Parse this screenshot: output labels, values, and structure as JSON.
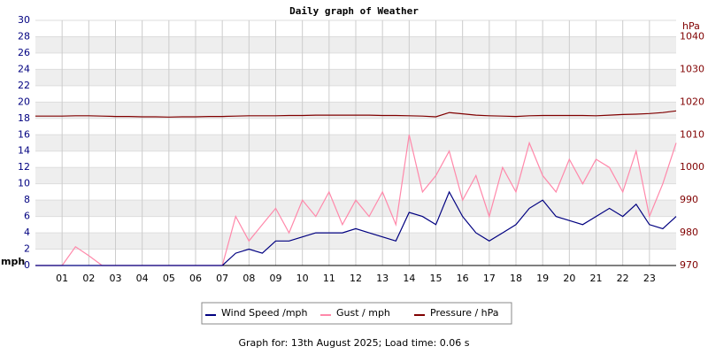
{
  "chart_data": {
    "type": "line",
    "title": "Daily graph of Weather",
    "ylabel": "mph",
    "y2label": "hPa",
    "footer": "Graph for: 13th August 2025; Load time: 0.06 s",
    "x": [
      0,
      0.5,
      1,
      1.5,
      2,
      2.5,
      3,
      3.5,
      4,
      4.5,
      5,
      5.5,
      6,
      6.5,
      7,
      7.5,
      8,
      8.5,
      9,
      9.5,
      10,
      10.5,
      11,
      11.5,
      12,
      12.5,
      13,
      13.5,
      14,
      14.5,
      15,
      15.5,
      16,
      16.5,
      17,
      17.5,
      18,
      18.5,
      19,
      19.5,
      20,
      20.5,
      21,
      21.5,
      22,
      22.5,
      23,
      23.5,
      24
    ],
    "xlim": [
      0,
      24
    ],
    "xticks": [
      {
        "value": 1,
        "label": "01"
      },
      {
        "value": 2,
        "label": "02"
      },
      {
        "value": 3,
        "label": "03"
      },
      {
        "value": 4,
        "label": "04"
      },
      {
        "value": 5,
        "label": "05"
      },
      {
        "value": 6,
        "label": "06"
      },
      {
        "value": 7,
        "label": "07"
      },
      {
        "value": 8,
        "label": "08"
      },
      {
        "value": 9,
        "label": "09"
      },
      10,
      11,
      12,
      13,
      14,
      15,
      16,
      17,
      18,
      19,
      20,
      21,
      22,
      23
    ],
    "ylim": [
      0,
      30
    ],
    "yticks": [
      0,
      2,
      4,
      6,
      8,
      10,
      12,
      14,
      16,
      18,
      20,
      22,
      24,
      26,
      28,
      30
    ],
    "y2lim": [
      970,
      1045
    ],
    "y2ticks": [
      970,
      980,
      990,
      1000,
      1010,
      1020,
      1030,
      1040
    ],
    "grid": true,
    "series": [
      {
        "name": "Wind Speed /mph",
        "color": "#000080",
        "values": [
          0,
          0,
          0,
          0,
          0,
          0,
          0,
          0,
          0,
          0,
          0,
          0,
          0,
          0,
          0,
          1.5,
          2,
          1.5,
          3,
          3,
          3.5,
          4,
          4,
          4,
          4.5,
          4,
          3.5,
          3,
          6.5,
          6,
          5,
          9,
          6,
          4,
          3,
          4,
          5,
          7,
          8,
          6,
          5.5,
          5,
          6,
          7,
          6,
          7.5,
          5,
          4.5,
          6
        ]
      },
      {
        "name": "Gust / mph",
        "color": "#ff88aa",
        "values": [
          0,
          0,
          0,
          2.3,
          1.2,
          0,
          0,
          0,
          0,
          0,
          0,
          0,
          0,
          0,
          0,
          6,
          3,
          5,
          7,
          4,
          8,
          6,
          9,
          5,
          8,
          6,
          9,
          5,
          16,
          9,
          11,
          14,
          8,
          11,
          6,
          12,
          9,
          15,
          11,
          9,
          13,
          10,
          13,
          12,
          9,
          14,
          6,
          10,
          15
        ]
      },
      {
        "name": "Pressure / hPa",
        "color": "#800000",
        "axis": "y2",
        "values": [
          1015.7,
          1015.7,
          1015.7,
          1015.8,
          1015.8,
          1015.7,
          1015.6,
          1015.6,
          1015.5,
          1015.5,
          1015.4,
          1015.5,
          1015.5,
          1015.6,
          1015.6,
          1015.7,
          1015.8,
          1015.8,
          1015.8,
          1015.9,
          1015.9,
          1016,
          1016,
          1016,
          1016,
          1016,
          1015.9,
          1015.9,
          1015.8,
          1015.7,
          1015.5,
          1016.8,
          1016.4,
          1016,
          1015.8,
          1015.7,
          1015.6,
          1015.8,
          1015.9,
          1015.9,
          1015.9,
          1015.9,
          1015.8,
          1016,
          1016.2,
          1016.3,
          1016.5,
          1016.8,
          1017.3
        ]
      }
    ]
  }
}
